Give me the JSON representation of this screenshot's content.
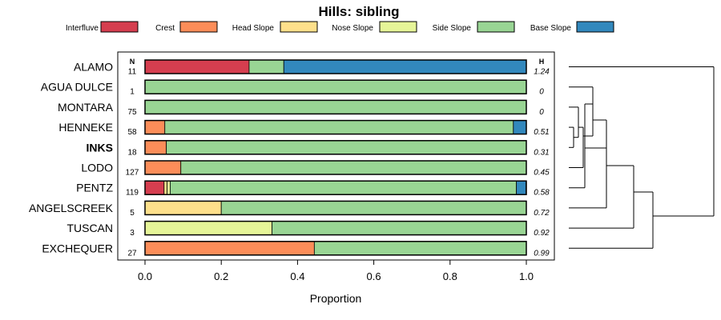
{
  "chart_data": {
    "type": "bar",
    "orientation": "horizontal",
    "stacked": true,
    "title": "Hills: sibling",
    "xlabel": "Proportion",
    "ylabel": "",
    "xlim": [
      0,
      1
    ],
    "xticks": [
      "0.0",
      "0.2",
      "0.4",
      "0.6",
      "0.8",
      "1.0"
    ],
    "column_headers": {
      "n": "N",
      "h": "H"
    },
    "legend_position": "top",
    "categories_legend": [
      {
        "name": "Interfluve",
        "color": "#D53E4F"
      },
      {
        "name": "Crest",
        "color": "#FC8D59"
      },
      {
        "name": "Head Slope",
        "color": "#FEE08B"
      },
      {
        "name": "Nose Slope",
        "color": "#E6F598"
      },
      {
        "name": "Side Slope",
        "color": "#99D594"
      },
      {
        "name": "Base Slope",
        "color": "#3288BD"
      }
    ],
    "rows": [
      {
        "label": "ALAMO",
        "n": "11",
        "h": "1.24",
        "bold": false,
        "values": [
          0.273,
          0,
          0,
          0,
          0.091,
          0.636
        ]
      },
      {
        "label": "AGUA DULCE",
        "n": "1",
        "h": "0",
        "bold": false,
        "values": [
          0,
          0,
          0,
          0,
          1.0,
          0
        ]
      },
      {
        "label": "MONTARA",
        "n": "75",
        "h": "0",
        "bold": false,
        "values": [
          0,
          0,
          0,
          0,
          1.0,
          0
        ]
      },
      {
        "label": "HENNEKE",
        "n": "58",
        "h": "0.51",
        "bold": false,
        "values": [
          0,
          0.052,
          0,
          0,
          0.914,
          0.034
        ]
      },
      {
        "label": "INKS",
        "n": "18",
        "h": "0.31",
        "bold": true,
        "values": [
          0,
          0.056,
          0,
          0,
          0.944,
          0
        ]
      },
      {
        "label": "LODO",
        "n": "127",
        "h": "0.45",
        "bold": false,
        "values": [
          0,
          0.094,
          0,
          0,
          0.906,
          0
        ]
      },
      {
        "label": "PENTZ",
        "n": "119",
        "h": "0.58",
        "bold": false,
        "values": [
          0.05,
          0,
          0.008,
          0.008,
          0.908,
          0.025
        ]
      },
      {
        "label": "ANGELSCREEK",
        "n": "5",
        "h": "0.72",
        "bold": false,
        "values": [
          0,
          0,
          0.2,
          0,
          0.8,
          0
        ]
      },
      {
        "label": "TUSCAN",
        "n": "3",
        "h": "0.92",
        "bold": false,
        "values": [
          0,
          0,
          0,
          0.333,
          0.667,
          0
        ]
      },
      {
        "label": "EXCHEQUER",
        "n": "27",
        "h": "0.99",
        "bold": false,
        "values": [
          0,
          0.444,
          0,
          0,
          0.556,
          0
        ]
      }
    ],
    "dendrogram": "hierarchical clustering of rows shown at right"
  }
}
